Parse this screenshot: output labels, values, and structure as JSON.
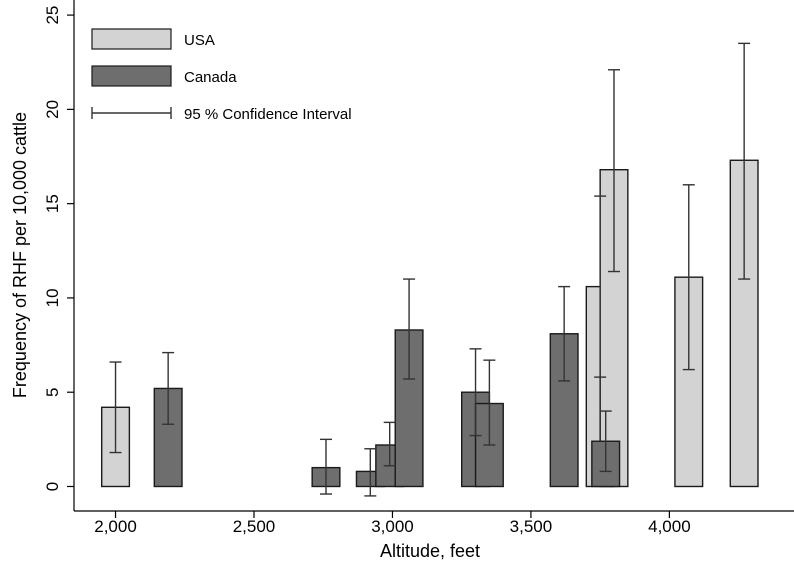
{
  "chart_data": {
    "type": "bar",
    "title": "",
    "xlabel": "Altitude, feet",
    "ylabel": "Frequency of RHF per 10,000 cattle",
    "xlim": [
      1850,
      4450
    ],
    "ylim": [
      -1.3,
      25.8
    ],
    "xticks": [
      2000,
      2500,
      3000,
      3500,
      4000
    ],
    "xtick_labels": [
      "2,000",
      "2,500",
      "3,000",
      "3,500",
      "4,000"
    ],
    "yticks": [
      0,
      5,
      10,
      15,
      20,
      25
    ],
    "ytick_labels": [
      "0",
      "5",
      "10",
      "15",
      "20",
      "25"
    ],
    "bar_width": 100,
    "grid": false,
    "legend_position": "top-left",
    "colors": {
      "USA": "#d3d3d3",
      "Canada": "#6e6e6e",
      "edge": "#1a1a1a",
      "errorbar": "#333333"
    },
    "series": [
      {
        "name": "USA",
        "points": [
          {
            "x": 2000,
            "y": 4.2,
            "ci": [
              1.8,
              6.6
            ]
          },
          {
            "x": 3750,
            "y": 10.6,
            "ci": [
              5.8,
              15.4
            ]
          },
          {
            "x": 3800,
            "y": 16.8,
            "ci": [
              11.4,
              22.1
            ]
          },
          {
            "x": 4070,
            "y": 11.1,
            "ci": [
              6.2,
              16.0
            ]
          },
          {
            "x": 4270,
            "y": 17.3,
            "ci": [
              11.0,
              23.5
            ]
          }
        ]
      },
      {
        "name": "Canada",
        "points": [
          {
            "x": 2190,
            "y": 5.2,
            "ci": [
              3.3,
              7.1
            ]
          },
          {
            "x": 2760,
            "y": 1.0,
            "ci": [
              -0.4,
              2.5
            ]
          },
          {
            "x": 2920,
            "y": 0.8,
            "ci": [
              -0.5,
              2.0
            ]
          },
          {
            "x": 2990,
            "y": 2.2,
            "ci": [
              1.1,
              3.4
            ]
          },
          {
            "x": 3060,
            "y": 8.3,
            "ci": [
              5.7,
              11.0
            ]
          },
          {
            "x": 3300,
            "y": 5.0,
            "ci": [
              2.7,
              7.3
            ]
          },
          {
            "x": 3350,
            "y": 4.4,
            "ci": [
              2.2,
              6.7
            ]
          },
          {
            "x": 3620,
            "y": 8.1,
            "ci": [
              5.6,
              10.6
            ]
          },
          {
            "x": 3770,
            "y": 2.4,
            "ci": [
              0.8,
              4.0
            ]
          }
        ]
      }
    ],
    "legend": {
      "usa_label": "USA",
      "canada_label": "Canada",
      "ci_label": "95 % Confidence Interval"
    }
  }
}
